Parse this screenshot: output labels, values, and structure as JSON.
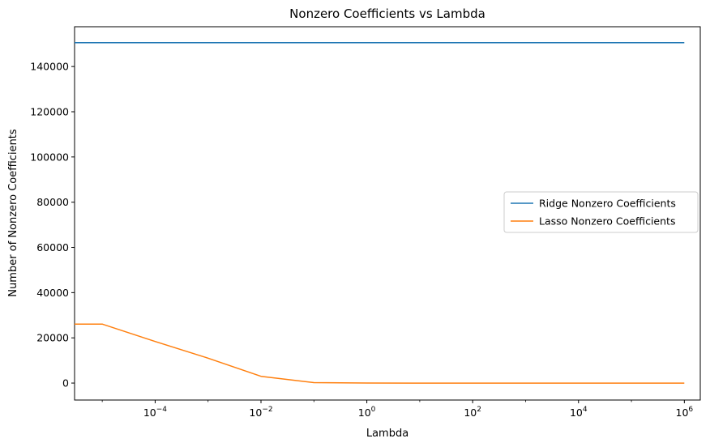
{
  "chart_data": {
    "type": "line",
    "title": "Nonzero Coefficients vs Lambda",
    "xlabel": "Lambda",
    "ylabel": "Number of Nonzero Coefficients",
    "xscale": "log",
    "xlim": [
      3e-06,
      2000000.0
    ],
    "ylim": [
      -7500,
      157600
    ],
    "x": [
      1e-05,
      0.0001,
      0.001,
      0.01,
      0.1,
      1,
      10,
      100,
      1000,
      10000,
      100000,
      1000000
    ],
    "series": [
      {
        "name": "Ridge Nonzero Coefficients",
        "color": "#1f77b4",
        "values": [
          150500,
          150500,
          150500,
          150500,
          150500,
          150500,
          150500,
          150500,
          150500,
          150500,
          150500,
          150500
        ]
      },
      {
        "name": "Lasso Nonzero Coefficients",
        "color": "#ff7f0e",
        "values": [
          26100,
          18400,
          11000,
          3000,
          200,
          20,
          0,
          0,
          0,
          0,
          0,
          0
        ]
      }
    ],
    "extra_points": [
      {
        "series": 1,
        "x": 3e-06,
        "y": 26100
      }
    ],
    "y_ticks": [
      0,
      20000,
      40000,
      60000,
      80000,
      100000,
      120000,
      140000
    ],
    "y_tick_labels": [
      "0",
      "20000",
      "40000",
      "60000",
      "80000",
      "100000",
      "120000",
      "140000"
    ],
    "x_ticks": [
      0.0001,
      0.01,
      1,
      100,
      10000,
      1000000
    ],
    "x_tick_labels": [
      {
        "base": "10",
        "exp": "−4"
      },
      {
        "base": "10",
        "exp": "−2"
      },
      {
        "base": "10",
        "exp": "0"
      },
      {
        "base": "10",
        "exp": "2"
      },
      {
        "base": "10",
        "exp": "4"
      },
      {
        "base": "10",
        "exp": "6"
      }
    ],
    "grid": false,
    "legend_position": "center-right"
  }
}
